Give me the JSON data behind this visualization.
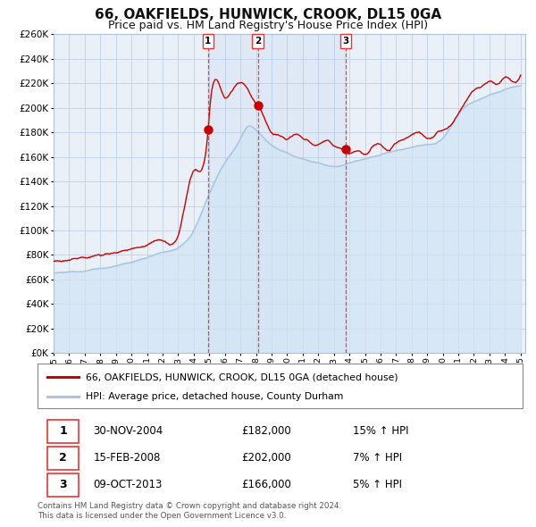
{
  "title": "66, OAKFIELDS, HUNWICK, CROOK, DL15 0GA",
  "subtitle": "Price paid vs. HM Land Registry's House Price Index (HPI)",
  "legend_line1": "66, OAKFIELDS, HUNWICK, CROOK, DL15 0GA (detached house)",
  "legend_line2": "HPI: Average price, detached house, County Durham",
  "footer1": "Contains HM Land Registry data © Crown copyright and database right 2024.",
  "footer2": "This data is licensed under the Open Government Licence v3.0.",
  "transactions": [
    {
      "num": 1,
      "date": "30-NOV-2004",
      "price": "£182,000",
      "hpi": "15% ↑ HPI",
      "year": 2004.92
    },
    {
      "num": 2,
      "date": "15-FEB-2008",
      "price": "£202,000",
      "hpi": "7% ↑ HPI",
      "year": 2008.12
    },
    {
      "num": 3,
      "date": "09-OCT-2013",
      "price": "£166,000",
      "hpi": "5% ↑ HPI",
      "year": 2013.77
    }
  ],
  "transaction_values": [
    182000,
    202000,
    166000
  ],
  "ylim": [
    0,
    260000
  ],
  "ytick_step": 20000,
  "red_line_color": "#cc0000",
  "blue_line_color": "#a8c4e0",
  "fill_color": "#d0e4f4",
  "grid_color": "#c0d0e4",
  "bg_color": "#eaf0f8",
  "dashed_line_color": "#ee3333",
  "title_fontsize": 11,
  "subtitle_fontsize": 9
}
